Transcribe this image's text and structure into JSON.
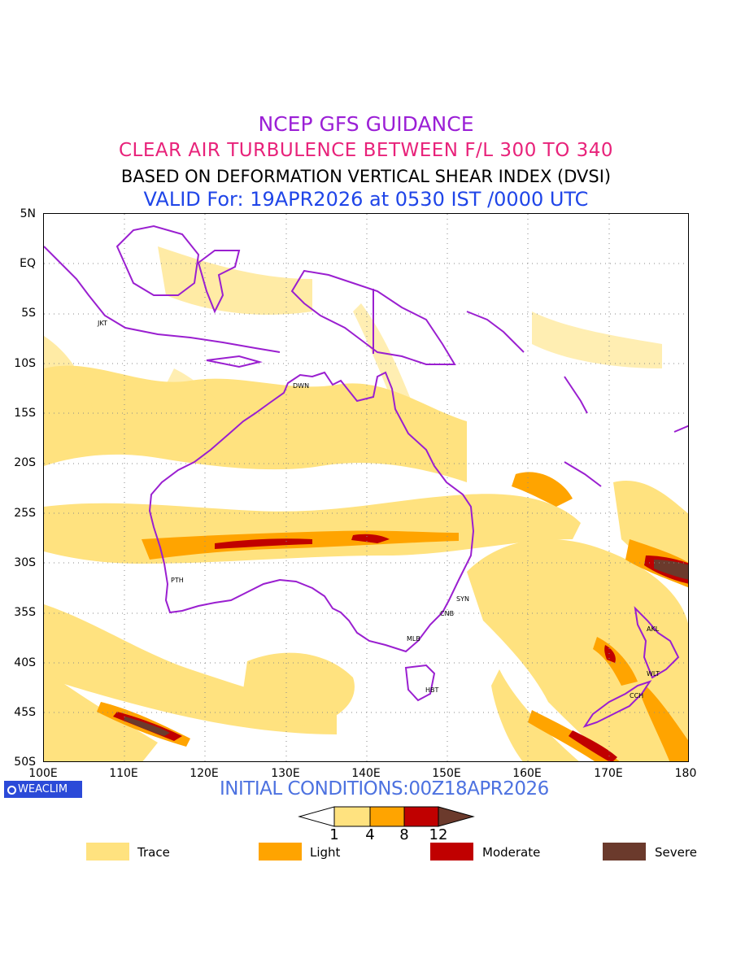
{
  "header": {
    "line1": "NCEP GFS GUIDANCE",
    "line2": "CLEAR AIR TURBULENCE BETWEEN F/L 300 TO 340",
    "line3": "BASED ON DEFORMATION VERTICAL SHEAR INDEX (DVSI)",
    "line4": "VALID For: 19APR2026 at 0530 IST /0000 UTC"
  },
  "map": {
    "lon_range": [
      100,
      180
    ],
    "lat_range": [
      5,
      -50
    ],
    "lat_labels": [
      "5N",
      "EQ",
      "5S",
      "10S",
      "15S",
      "20S",
      "25S",
      "30S",
      "35S",
      "40S",
      "45S",
      "50S"
    ],
    "lon_labels": [
      "100E",
      "110E",
      "120E",
      "130E",
      "140E",
      "150E",
      "160E",
      "170E",
      "180"
    ],
    "coast_color": "#9a1fd0",
    "cities": [
      {
        "code": "JKT",
        "lon": 106.8,
        "lat": -6.2
      },
      {
        "code": "DWN",
        "lon": 130.8,
        "lat": -12.4
      },
      {
        "code": "PTH",
        "lon": 115.9,
        "lat": -31.9
      },
      {
        "code": "SYN",
        "lon": 151.2,
        "lat": -33.9
      },
      {
        "code": "CNB",
        "lon": 149.1,
        "lat": -35.3
      },
      {
        "code": "MLB",
        "lon": 145.0,
        "lat": -37.8
      },
      {
        "code": "HBT",
        "lon": 147.3,
        "lat": -42.9
      },
      {
        "code": "AKL",
        "lon": 174.8,
        "lat": -36.8
      },
      {
        "code": "WLT",
        "lon": 174.8,
        "lat": -41.3
      },
      {
        "code": "CCH",
        "lon": 172.6,
        "lat": -43.5
      }
    ]
  },
  "footer": {
    "logo": "WEACLIM",
    "initial": "INITIAL CONDITIONS:00Z18APR2026"
  },
  "colorbar": {
    "ticks": [
      "1",
      "4",
      "8",
      "12"
    ],
    "colors": [
      "#ffffff",
      "#ffe27f",
      "#ffa400",
      "#c00000",
      "#6b3a2c"
    ]
  },
  "legend": [
    {
      "label": "Trace",
      "color": "#ffe27f"
    },
    {
      "label": "Light",
      "color": "#ffa400"
    },
    {
      "label": "Moderate",
      "color": "#c00000"
    },
    {
      "label": "Severe",
      "color": "#6b3a2c"
    }
  ]
}
